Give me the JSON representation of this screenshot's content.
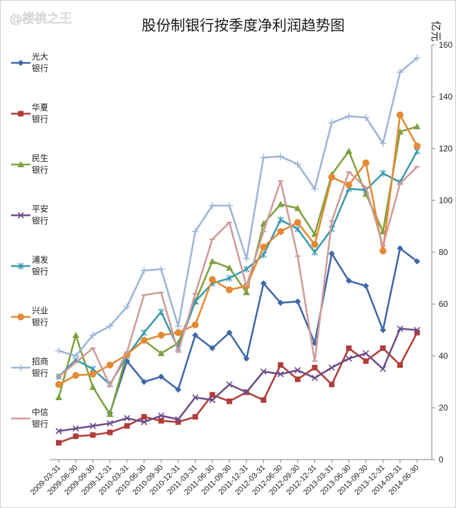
{
  "chart_data": {
    "type": "line",
    "title": "股份制银行按季度净利润趋势图",
    "watermark": "@楼桃之王",
    "ylabel": "亿元",
    "ylim": [
      0,
      160
    ],
    "yticks": [
      0,
      20,
      40,
      60,
      80,
      100,
      120,
      140,
      160
    ],
    "y_axis_side": "right",
    "grid": false,
    "legend_position": "left",
    "x": [
      "2009-03-31",
      "2009-06-30",
      "2009-09-30",
      "2009-12-31",
      "2010-03-31",
      "2010-06-30",
      "2010-09-30",
      "2010-12-31",
      "2011-03-31",
      "2011-06-30",
      "2011-09-30",
      "2011-12-31",
      "2012-03-31",
      "2012-06-30",
      "2012-09-30",
      "2012-12-31",
      "2013-03-31",
      "2013-06-30",
      "2013-09-30",
      "2013-12-31",
      "2014-03-31",
      "2014-06-30"
    ],
    "series": [
      {
        "name": "光大银行",
        "legend_lines": [
          "光大",
          "银行"
        ],
        "color": "#3f68a8",
        "marker": "diamond",
        "values": [
          null,
          null,
          null,
          18,
          38,
          30,
          32,
          27,
          48,
          43,
          49,
          39,
          68,
          60.5,
          61,
          45,
          79.5,
          69,
          67,
          50,
          81.5,
          76.5
        ]
      },
      {
        "name": "华夏银行",
        "legend_lines": [
          "华夏",
          "银行"
        ],
        "color": "#b13c3a",
        "marker": "square",
        "values": [
          6.5,
          9,
          9.5,
          10.5,
          13,
          16.5,
          15,
          14.5,
          16.5,
          25,
          22.5,
          26,
          23,
          36.5,
          31,
          35.5,
          29,
          43,
          38,
          43,
          36.5,
          49
        ]
      },
      {
        "name": "民生银行",
        "legend_lines": [
          "民生",
          "银行"
        ],
        "color": "#7ea241",
        "marker": "triangle",
        "values": [
          24,
          48,
          28,
          17.5,
          41,
          46,
          41,
          45,
          61,
          76.5,
          74,
          64.5,
          91,
          98.5,
          97,
          87,
          110,
          119,
          102.5,
          88,
          126.5,
          128.5
        ]
      },
      {
        "name": "平安银行",
        "legend_lines": [
          "平安",
          "银行"
        ],
        "color": "#6c4d8c",
        "marker": "x",
        "values": [
          11,
          12,
          13,
          14,
          16,
          14.5,
          17,
          15.5,
          24,
          23,
          29,
          26,
          34,
          33,
          34.5,
          31.5,
          35.5,
          39,
          41,
          35,
          50.5,
          50
        ]
      },
      {
        "name": "浦发银行",
        "legend_lines": [
          "浦发",
          "银行"
        ],
        "color": "#3b9aae",
        "marker": "asterisk",
        "values": [
          32,
          38.5,
          35,
          29,
          40,
          49,
          57,
          43,
          61,
          68,
          70,
          73.5,
          79,
          92.5,
          89,
          80,
          89,
          104.5,
          104,
          110.5,
          107,
          119
        ]
      },
      {
        "name": "兴业银行",
        "legend_lines": [
          "兴业",
          "银行"
        ],
        "color": "#e48a34",
        "marker": "circle",
        "values": [
          29,
          32.5,
          33,
          36.5,
          40.5,
          46,
          48,
          49,
          52,
          69.5,
          65.5,
          67,
          82,
          88,
          91.5,
          83,
          109,
          106,
          114.5,
          80.5,
          133,
          121
        ]
      },
      {
        "name": "招商银行",
        "legend_lines": [
          "招商",
          "银行"
        ],
        "color": "#9db6d6",
        "marker": "plus",
        "values": [
          42,
          40,
          48,
          51.5,
          59,
          73,
          73.5,
          51.5,
          88,
          98,
          98,
          77.5,
          116.5,
          117,
          114,
          104.5,
          130,
          132.5,
          132,
          122,
          149.5,
          155
        ]
      },
      {
        "name": "中信银行",
        "legend_lines": [
          "中信",
          "银行"
        ],
        "color": "#d19a9a",
        "marker": "dash",
        "values": [
          32,
          37.5,
          43,
          28.5,
          41.5,
          63.5,
          64.5,
          41.5,
          64,
          85,
          91.5,
          67,
          88,
          107.5,
          78.5,
          38,
          92,
          111,
          105,
          82.5,
          106.5,
          113
        ]
      }
    ]
  }
}
